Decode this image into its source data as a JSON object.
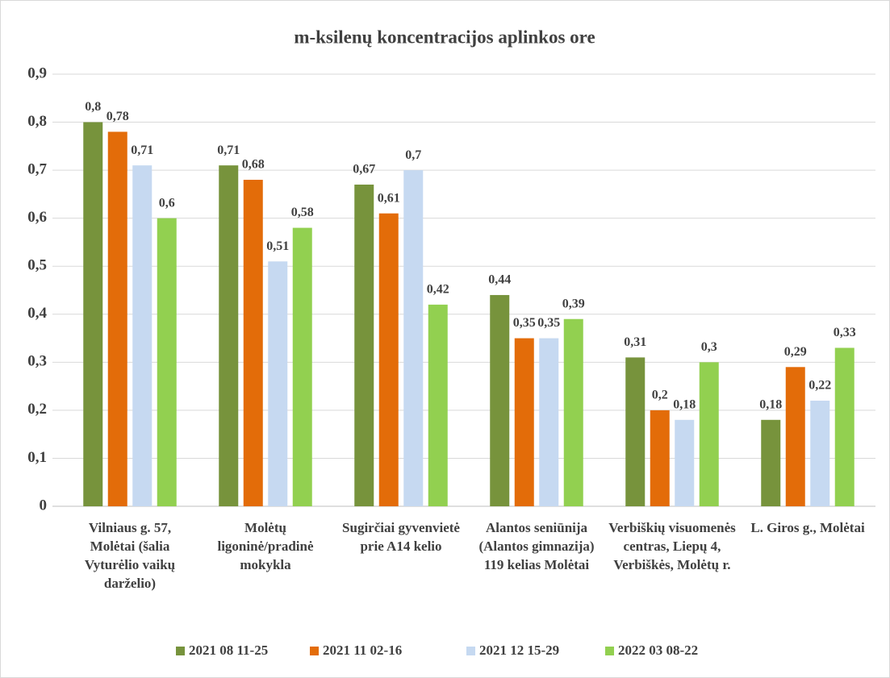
{
  "chart_data": {
    "type": "bar",
    "title": "m-ksilenų koncentracijos aplinkos ore",
    "categories": [
      "Vilniaus g. 57, Molėtai (šalia Vyturėlio vaikų darželio)",
      "Molėtų ligoninė/pradinė mokykla",
      "Sugirčiai gyvenvietė prie A14 kelio",
      "Alantos seniūnija (Alantos gimnazija) 119 kelias Molėtai",
      "Verbiškių visuomenės centras, Liepų 4, Verbiškės, Molėtų r.",
      "L. Giros g., Molėtai"
    ],
    "series": [
      {
        "name": "2021 08 11-25",
        "color": "#77933c",
        "values": [
          0.8,
          0.71,
          0.67,
          0.44,
          0.31,
          0.18
        ],
        "value_labels": [
          "0,8",
          "0,71",
          "0,67",
          "0,44",
          "0,31",
          "0,18"
        ]
      },
      {
        "name": "2021 11 02-16",
        "color": "#e36c09",
        "values": [
          0.78,
          0.68,
          0.61,
          0.35,
          0.2,
          0.29
        ],
        "value_labels": [
          "0,78",
          "0,68",
          "0,61",
          "0,35",
          "0,2",
          "0,29"
        ]
      },
      {
        "name": "2021 12 15-29",
        "color": "#c6d9f1",
        "values": [
          0.71,
          0.51,
          0.7,
          0.35,
          0.18,
          0.22
        ],
        "value_labels": [
          "0,71",
          "0,51",
          "0,7",
          "0,35",
          "0,18",
          "0,22"
        ]
      },
      {
        "name": "2022 03 08-22",
        "color": "#92d050",
        "values": [
          0.6,
          0.58,
          0.42,
          0.39,
          0.3,
          0.33
        ],
        "value_labels": [
          "0,6",
          "0,58",
          "0,42",
          "0,39",
          "0,3",
          "0,33"
        ]
      }
    ],
    "ylim": [
      0,
      0.9
    ],
    "yticks": [
      0,
      {
        "value": 0.1,
        "label": "0,1"
      },
      {
        "value": 0.2,
        "label": "0,2"
      },
      {
        "value": 0.3,
        "label": "0,3"
      },
      {
        "value": 0.4,
        "label": "0,4"
      },
      {
        "value": 0.5,
        "label": "0,5"
      },
      {
        "value": 0.6,
        "label": "0,6"
      },
      {
        "value": 0.7,
        "label": "0,7"
      },
      {
        "value": 0.8,
        "label": "0,8"
      },
      {
        "value": 0.9,
        "label": "0,9"
      }
    ],
    "grid": true,
    "legend": "bottom"
  }
}
